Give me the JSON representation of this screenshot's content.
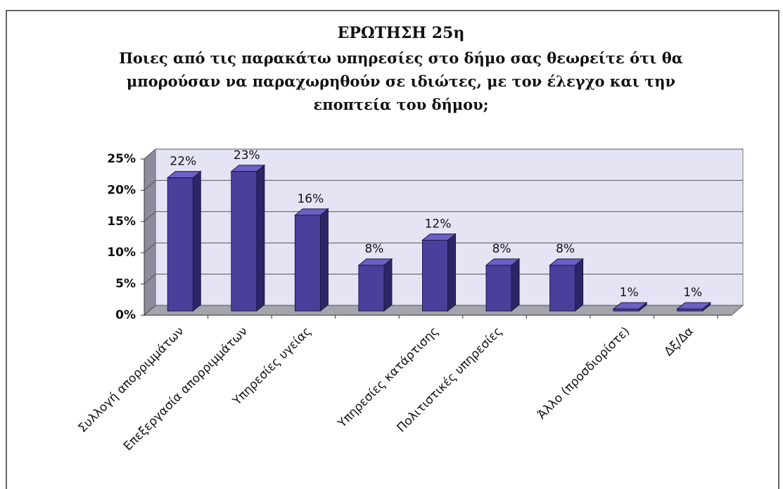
{
  "chart_data": {
    "type": "bar3d",
    "title": "ΕΡΩΤΗΣΗ 25η",
    "subtitle": "Ποιες από τις παρακάτω υπηρεσίες στο δήμο σας θεωρείτε ότι θα μπορούσαν να παραχωρηθούν σε ιδιώτες, με τον έλεγχο και την εποπτεία του δήμου;",
    "categories": [
      "Συλλογή απορριμμάτων",
      "Επεξεργασία απορριμμάτων",
      "Υπηρεσίες υγείας",
      null,
      "Υπηρεσίες κατάρτισης",
      "Πολιτιστικές υπηρεσίες",
      null,
      "Άλλο (προσδιορίστε)",
      "Δξ/Δα"
    ],
    "values": [
      22,
      23,
      16,
      8,
      12,
      8,
      8,
      1,
      1
    ],
    "value_labels": [
      "22%",
      "23%",
      "16%",
      "8%",
      "12%",
      "8%",
      "8%",
      "1%",
      "1%"
    ],
    "color": "#4b3f9c",
    "ylim": [
      0,
      25
    ],
    "yticks": [
      {
        "value": 0,
        "label": "0%"
      },
      {
        "value": 5,
        "label": "5%"
      },
      {
        "value": 10,
        "label": "10%"
      },
      {
        "value": 15,
        "label": "15%"
      },
      {
        "value": 20,
        "label": "20%"
      },
      {
        "value": 25,
        "label": "25%"
      }
    ],
    "grid": true
  }
}
